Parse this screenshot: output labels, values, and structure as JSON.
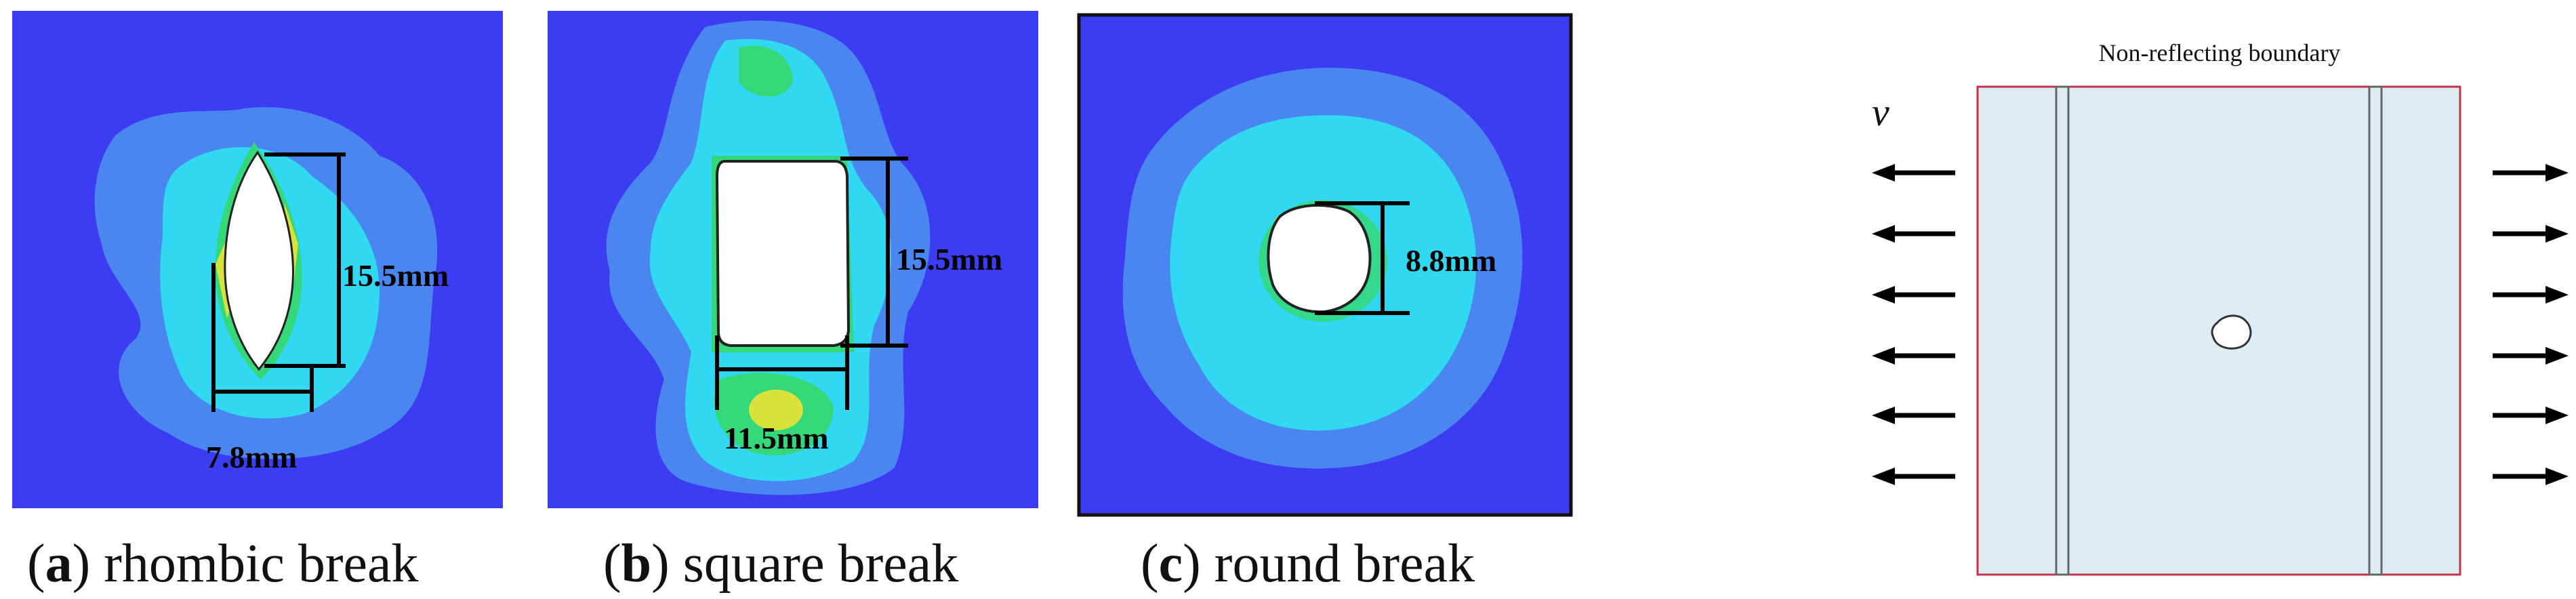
{
  "panels": [
    {
      "letter": "a",
      "label": " rhombic break",
      "measure_height": "15.5mm",
      "measure_width": "7.8mm"
    },
    {
      "letter": "b",
      "label": " square break",
      "measure_height": "15.5mm",
      "measure_width": "11.5mm"
    },
    {
      "letter": "c",
      "label": " round break",
      "measure_diameter": "8.8mm"
    }
  ],
  "schematic": {
    "title": "Non-reflecting boundary",
    "velocity_label": "v"
  },
  "colors": {
    "background_field": "#3c3cf2",
    "contour_light_blue": "#4a86f0",
    "contour_cyan": "#30d8f2",
    "contour_green": "#34d878",
    "contour_yellow": "#d8e23a",
    "plate_fill": "#dcecf2",
    "boundary": "#c0314a"
  }
}
